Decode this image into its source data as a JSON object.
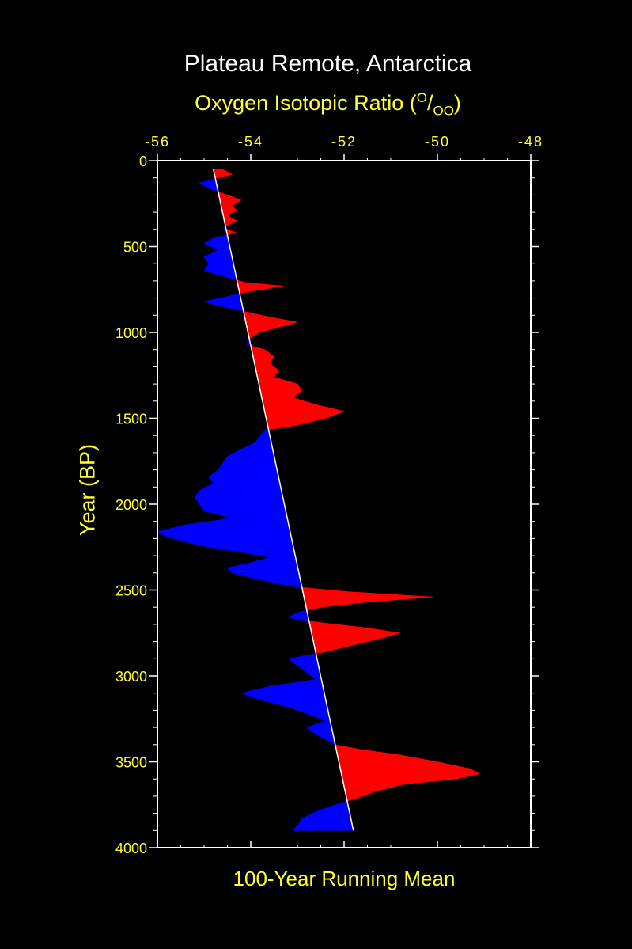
{
  "chart_data": {
    "type": "area",
    "title": "Plateau Remote, Antarctica",
    "xlabel": {
      "main": "Oxygen Isotopic Ratio (",
      "sup": "O",
      "sub": "OO",
      "close": ")"
    },
    "ylabel": "Year (BP)",
    "footer": "100-Year Running Mean",
    "xlim": [
      -56,
      -48
    ],
    "ylim": [
      0,
      4000
    ],
    "x_ticks": [
      -56,
      -54,
      -52,
      -50,
      -48
    ],
    "x_tick_labels": [
      "-56",
      "-54",
      "-52",
      "-50",
      "-48"
    ],
    "y_ticks": [
      0,
      500,
      1000,
      1500,
      2000,
      2500,
      3000,
      3500,
      4000
    ],
    "y_tick_labels": [
      "0",
      "500",
      "1000",
      "1500",
      "2000",
      "2500",
      "3000",
      "3500",
      "4000"
    ],
    "trend_line": {
      "start": {
        "year": 50,
        "x": -54.8
      },
      "end": {
        "year": 3900,
        "x": -51.8
      }
    },
    "colors": {
      "above_trend": "#ff0000",
      "below_trend": "#0000ff",
      "trend": "#ffffff",
      "axes": "#ffffff"
    },
    "series": [
      {
        "values": [
          [
            50,
            -54.6
          ],
          [
            80,
            -54.4
          ],
          [
            100,
            -54.7
          ],
          [
            130,
            -55.1
          ],
          [
            160,
            -54.9
          ],
          [
            200,
            -54.5
          ],
          [
            230,
            -54.2
          ],
          [
            260,
            -54.4
          ],
          [
            290,
            -54.3
          ],
          [
            320,
            -54.5
          ],
          [
            350,
            -54.3
          ],
          [
            390,
            -54.6
          ],
          [
            420,
            -54.3
          ],
          [
            450,
            -54.8
          ],
          [
            480,
            -55.0
          ],
          [
            520,
            -54.7
          ],
          [
            560,
            -55.0
          ],
          [
            600,
            -54.9
          ],
          [
            640,
            -55.0
          ],
          [
            680,
            -54.5
          ],
          [
            710,
            -54.1
          ],
          [
            730,
            -53.3
          ],
          [
            760,
            -54.0
          ],
          [
            790,
            -54.5
          ],
          [
            820,
            -55.0
          ],
          [
            850,
            -54.6
          ],
          [
            880,
            -54.1
          ],
          [
            910,
            -53.6
          ],
          [
            940,
            -53.0
          ],
          [
            970,
            -53.4
          ],
          [
            1000,
            -53.8
          ],
          [
            1030,
            -54.0
          ],
          [
            1070,
            -54.1
          ],
          [
            1100,
            -53.7
          ],
          [
            1140,
            -53.5
          ],
          [
            1180,
            -53.6
          ],
          [
            1220,
            -53.4
          ],
          [
            1260,
            -53.5
          ],
          [
            1300,
            -53.0
          ],
          [
            1340,
            -52.9
          ],
          [
            1380,
            -53.1
          ],
          [
            1420,
            -52.6
          ],
          [
            1460,
            -52.0
          ],
          [
            1500,
            -52.4
          ],
          [
            1540,
            -53.0
          ],
          [
            1570,
            -53.7
          ],
          [
            1600,
            -53.8
          ],
          [
            1640,
            -53.9
          ],
          [
            1680,
            -54.2
          ],
          [
            1720,
            -54.5
          ],
          [
            1760,
            -54.6
          ],
          [
            1800,
            -54.7
          ],
          [
            1840,
            -54.9
          ],
          [
            1880,
            -54.8
          ],
          [
            1920,
            -55.1
          ],
          [
            1960,
            -55.2
          ],
          [
            2000,
            -55.1
          ],
          [
            2040,
            -55.0
          ],
          [
            2080,
            -54.4
          ],
          [
            2120,
            -55.4
          ],
          [
            2160,
            -56.0
          ],
          [
            2190,
            -55.8
          ],
          [
            2220,
            -55.4
          ],
          [
            2250,
            -54.9
          ],
          [
            2280,
            -54.2
          ],
          [
            2310,
            -53.6
          ],
          [
            2340,
            -54.0
          ],
          [
            2370,
            -54.5
          ],
          [
            2400,
            -54.4
          ],
          [
            2440,
            -53.8
          ],
          [
            2480,
            -53.1
          ],
          [
            2510,
            -51.9
          ],
          [
            2540,
            -50.1
          ],
          [
            2570,
            -51.5
          ],
          [
            2600,
            -52.5
          ],
          [
            2630,
            -53.0
          ],
          [
            2660,
            -53.2
          ],
          [
            2690,
            -52.5
          ],
          [
            2720,
            -51.5
          ],
          [
            2750,
            -50.8
          ],
          [
            2780,
            -51.2
          ],
          [
            2820,
            -51.8
          ],
          [
            2860,
            -52.4
          ],
          [
            2900,
            -53.2
          ],
          [
            2940,
            -53.0
          ],
          [
            2980,
            -52.8
          ],
          [
            3020,
            -52.6
          ],
          [
            3060,
            -53.6
          ],
          [
            3100,
            -54.2
          ],
          [
            3140,
            -53.8
          ],
          [
            3180,
            -53.2
          ],
          [
            3220,
            -52.8
          ],
          [
            3260,
            -52.4
          ],
          [
            3300,
            -52.8
          ],
          [
            3340,
            -52.6
          ],
          [
            3370,
            -52.4
          ],
          [
            3400,
            -52.2
          ],
          [
            3430,
            -51.6
          ],
          [
            3460,
            -50.8
          ],
          [
            3500,
            -50.0
          ],
          [
            3540,
            -49.3
          ],
          [
            3570,
            -49.1
          ],
          [
            3600,
            -49.6
          ],
          [
            3630,
            -50.7
          ],
          [
            3670,
            -51.3
          ],
          [
            3710,
            -51.7
          ],
          [
            3750,
            -52.2
          ],
          [
            3790,
            -52.6
          ],
          [
            3830,
            -52.9
          ],
          [
            3870,
            -53.0
          ],
          [
            3900,
            -53.1
          ]
        ]
      }
    ]
  }
}
